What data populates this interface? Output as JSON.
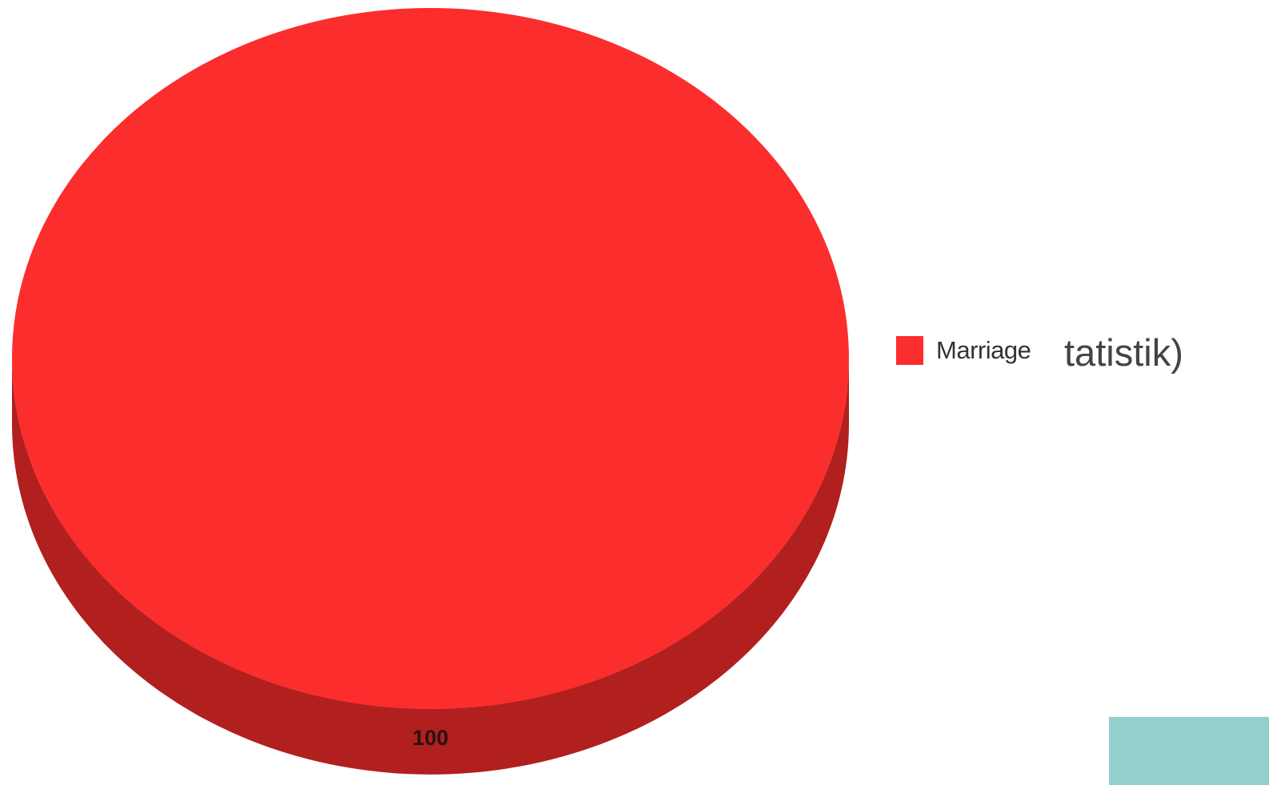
{
  "chart_data": {
    "type": "pie",
    "style": "3d",
    "title": "",
    "slices": [
      {
        "label": "Marriage",
        "value": 100,
        "color": "#fc2d2d",
        "side_color": "#b21f1f"
      }
    ],
    "data_labels": [
      "100"
    ],
    "legend": {
      "position": "right",
      "items": [
        "Marriage"
      ]
    }
  },
  "slide": {
    "partial_text": "tatistik)",
    "accent_color": "#93cfcc"
  }
}
